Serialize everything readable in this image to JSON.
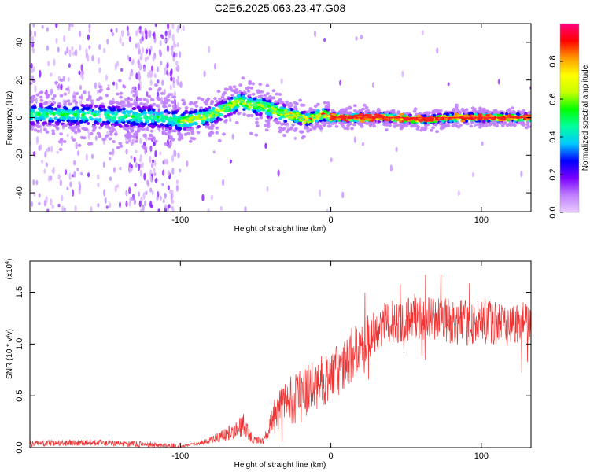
{
  "title": "C2E6.2025.063.23.47.G08",
  "chart_data": [
    {
      "type": "heatmap",
      "xlabel": "Height of straight line (km)",
      "ylabel": "Frequency (Hz)",
      "xlim": [
        -200,
        133
      ],
      "ylim": [
        -50,
        50
      ],
      "x_ticks": [
        -100,
        0,
        100
      ],
      "y_ticks": [
        -40,
        -20,
        0,
        20,
        40
      ],
      "colorbar": {
        "label": "Normalized spectral amplitude",
        "range": [
          0,
          1
        ],
        "ticks": [
          "0.0",
          "0.2",
          "0.4",
          "0.6",
          "0.8"
        ],
        "tick_values": [
          0,
          0.2,
          0.4,
          0.6,
          0.8
        ],
        "colors": [
          "#e8ccff",
          "#c080ff",
          "#7a00ff",
          "#0000ff",
          "#00c8ff",
          "#00ffa0",
          "#00ff00",
          "#c8ff00",
          "#ffff00",
          "#ff9900",
          "#ff0000",
          "#ff0080"
        ]
      },
      "ridge": {
        "x": [
          -200,
          -150,
          -110,
          -100,
          -80,
          -70,
          -60,
          -55,
          -45,
          -35,
          -25,
          -15,
          -5,
          0,
          20,
          40,
          55,
          65,
          80,
          100,
          120,
          133
        ],
        "y": [
          2,
          1,
          0,
          -2,
          1,
          5,
          9,
          7,
          6,
          3,
          1,
          -1,
          2,
          0,
          0,
          0,
          -1,
          -1,
          0,
          0,
          0,
          0
        ]
      }
    },
    {
      "type": "line",
      "xlabel": "Height of straight line (km)",
      "ylabel": "SNR (10 * v/v)",
      "y_multiplier": "(x10",
      "y_multiplier_exp": "4",
      "y_multiplier_close": ")",
      "xlim": [
        -200,
        133
      ],
      "ylim": [
        0,
        1.8
      ],
      "x_ticks": [
        -100,
        0,
        100
      ],
      "y_ticks": [
        0.0,
        0.5,
        1.0,
        1.5
      ],
      "y_tick_labels": [
        "0.0",
        "0.5",
        "1.0",
        "1.5"
      ],
      "color": "#ee3333",
      "envelope": {
        "x": [
          -200,
          -160,
          -120,
          -100,
          -85,
          -75,
          -65,
          -58,
          -52,
          -45,
          -38,
          -30,
          -20,
          -10,
          0,
          10,
          20,
          30,
          40,
          50,
          60,
          70,
          80,
          90,
          100,
          110,
          120,
          133
        ],
        "y": [
          0.04,
          0.05,
          0.03,
          0.01,
          0.05,
          0.1,
          0.16,
          0.22,
          0.08,
          0.06,
          0.3,
          0.45,
          0.5,
          0.6,
          0.7,
          0.8,
          1.0,
          1.15,
          1.2,
          1.25,
          1.25,
          1.25,
          1.22,
          1.2,
          1.2,
          1.2,
          1.2,
          1.22
        ]
      }
    }
  ]
}
